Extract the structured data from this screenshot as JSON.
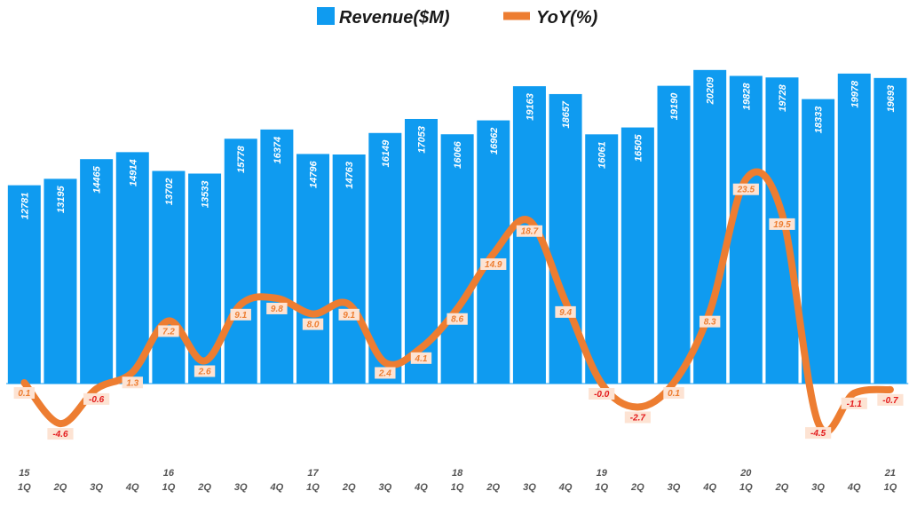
{
  "chart_data": {
    "type": "bar",
    "title": "",
    "legend": {
      "placement": "top-center"
    },
    "categories": [
      {
        "year": "15",
        "q": "1Q"
      },
      {
        "year": "",
        "q": "2Q"
      },
      {
        "year": "",
        "q": "3Q"
      },
      {
        "year": "",
        "q": "4Q"
      },
      {
        "year": "16",
        "q": "1Q"
      },
      {
        "year": "",
        "q": "2Q"
      },
      {
        "year": "",
        "q": "3Q"
      },
      {
        "year": "",
        "q": "4Q"
      },
      {
        "year": "17",
        "q": "1Q"
      },
      {
        "year": "",
        "q": "2Q"
      },
      {
        "year": "",
        "q": "3Q"
      },
      {
        "year": "",
        "q": "4Q"
      },
      {
        "year": "18",
        "q": "1Q"
      },
      {
        "year": "",
        "q": "2Q"
      },
      {
        "year": "",
        "q": "3Q"
      },
      {
        "year": "",
        "q": "4Q"
      },
      {
        "year": "19",
        "q": "1Q"
      },
      {
        "year": "",
        "q": "2Q"
      },
      {
        "year": "",
        "q": "3Q"
      },
      {
        "year": "",
        "q": "4Q"
      },
      {
        "year": "20",
        "q": "1Q"
      },
      {
        "year": "",
        "q": "2Q"
      },
      {
        "year": "",
        "q": "3Q"
      },
      {
        "year": "",
        "q": "4Q"
      },
      {
        "year": "21",
        "q": "1Q"
      }
    ],
    "series": [
      {
        "name": "Revenue($M)",
        "type": "bar",
        "color": "#0f9bf0",
        "axis": "left",
        "ylim": [
          0,
          21000
        ],
        "values": [
          12781,
          13195,
          14465,
          14914,
          13702,
          13533,
          15778,
          16374,
          14796,
          14763,
          16149,
          17053,
          16066,
          16962,
          19163,
          18657,
          16061,
          16505,
          19190,
          20209,
          19828,
          19728,
          18333,
          19978,
          19693
        ],
        "labels": [
          "12781",
          "13195",
          "14465",
          "14914",
          "13702",
          "13533",
          "15778",
          "16374",
          "14796",
          "14763",
          "16149",
          "17053",
          "16066",
          "16962",
          "19163",
          "18657",
          "16061",
          "16505",
          "19190",
          "20209",
          "19828",
          "19728",
          "18333",
          "19978",
          "19693"
        ]
      },
      {
        "name": "YoY(%)",
        "type": "line",
        "color": "#ed7d31",
        "axis": "right",
        "ylim": [
          -8,
          36.6
        ],
        "values": [
          0.1,
          -4.6,
          -0.6,
          1.3,
          7.2,
          2.6,
          9.1,
          9.8,
          8.0,
          9.1,
          2.4,
          4.1,
          8.6,
          14.9,
          18.7,
          9.4,
          0.0,
          -2.7,
          0.1,
          8.3,
          23.5,
          19.5,
          -4.5,
          -1.1,
          -0.7
        ],
        "labels": [
          "0.1",
          "-4.6",
          "-0.6",
          "1.3",
          "7.2",
          "2.6",
          "9.1",
          "9.8",
          "8.0",
          "9.1",
          "2.4",
          "4.1",
          "8.6",
          "14.9",
          "18.7",
          "9.4",
          "-0.0",
          "-2.7",
          "0.1",
          "8.3",
          "23.5",
          "19.5",
          "-4.5",
          "-1.1",
          "-0.7"
        ]
      }
    ],
    "colors": {
      "positive_label": "#ed7d31",
      "negative_label": "#e31a1c",
      "label_box": "#fde3d3"
    }
  }
}
